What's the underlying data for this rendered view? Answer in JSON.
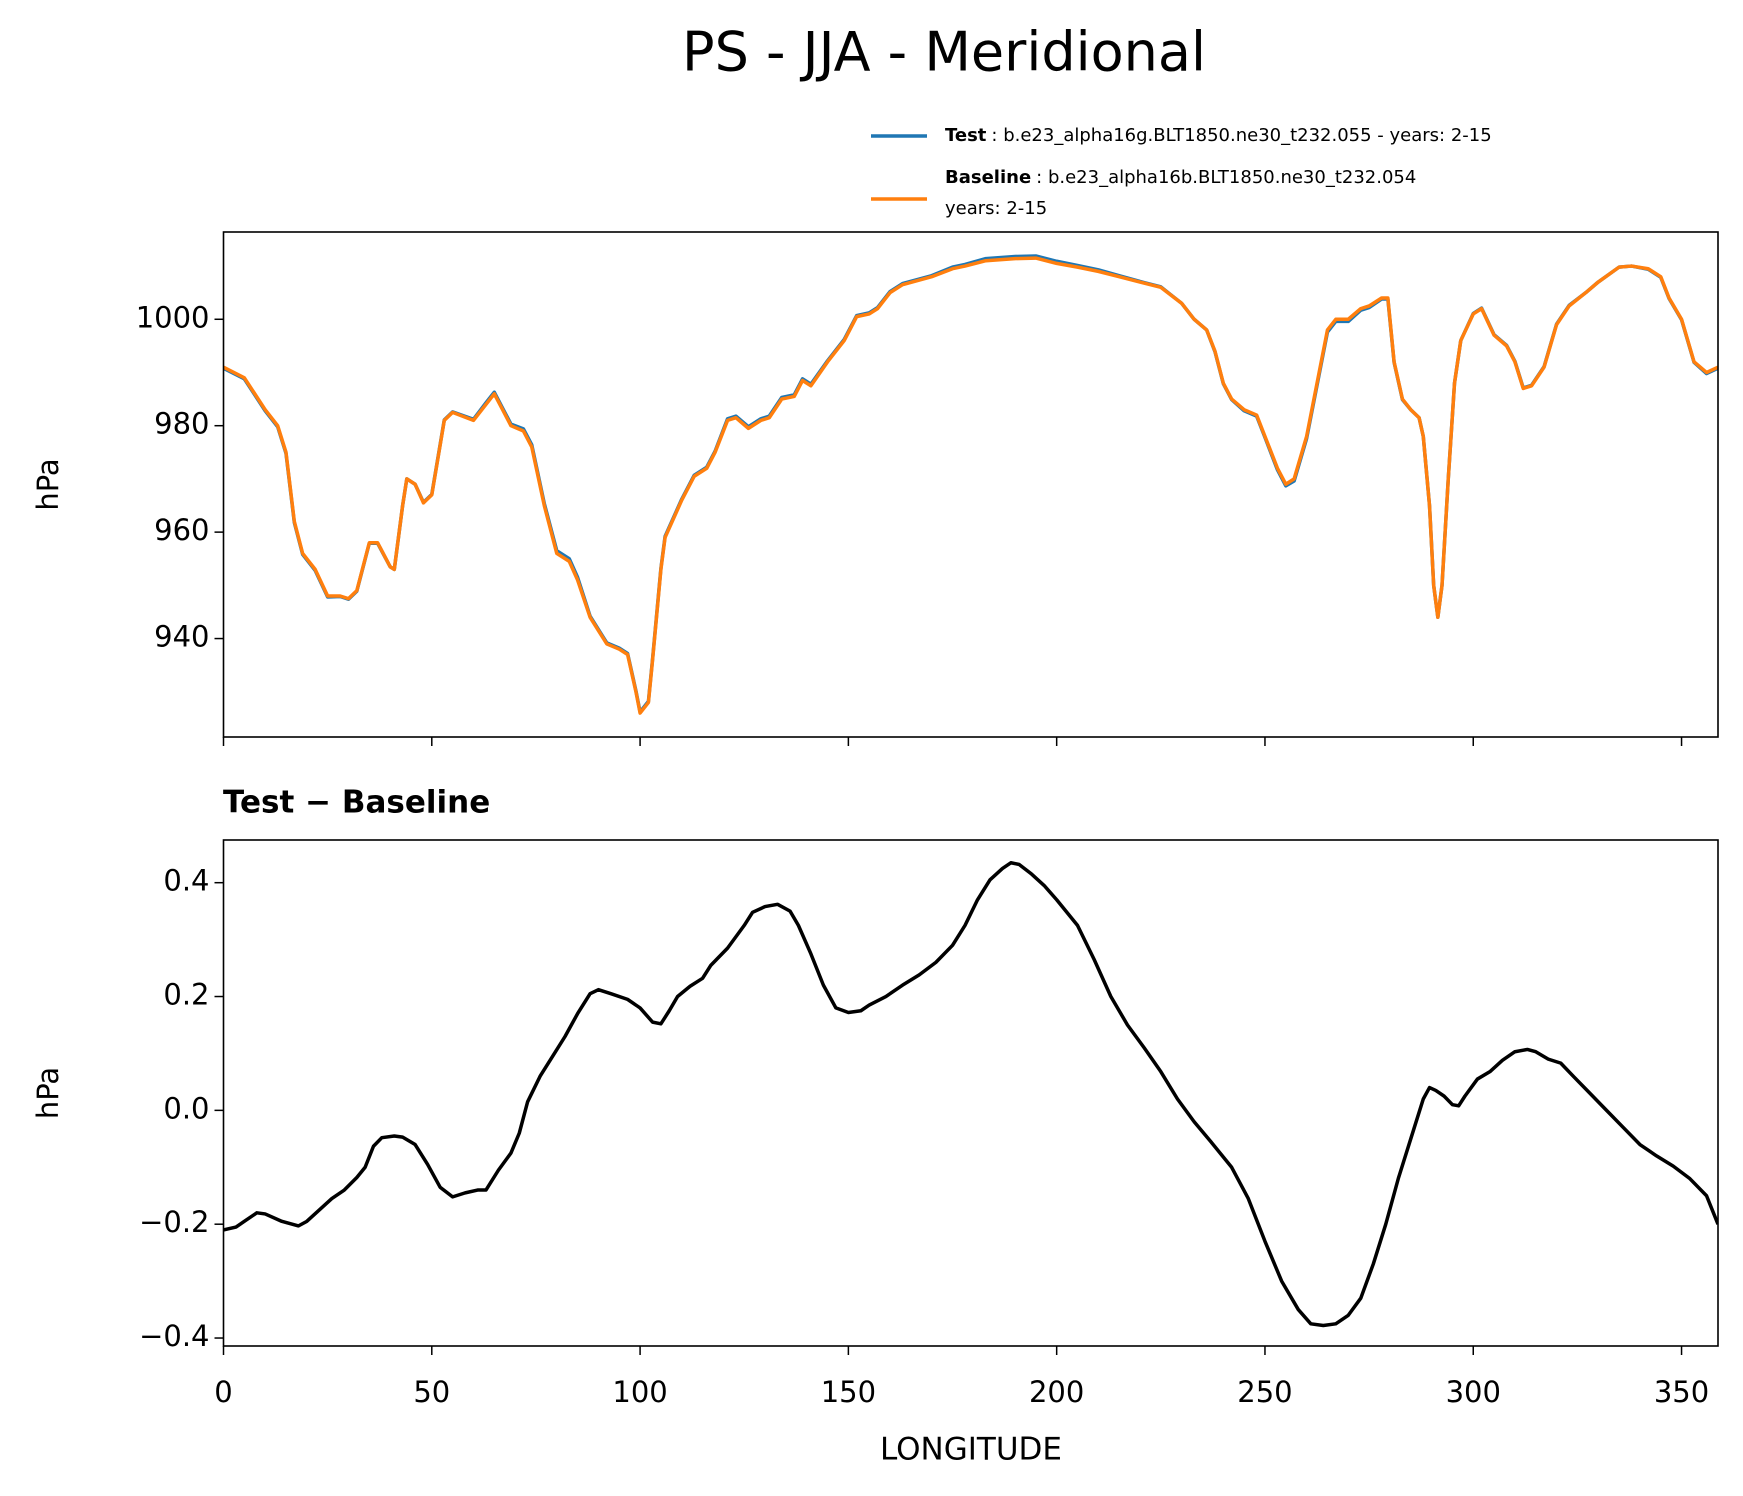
{
  "chart_data": [
    {
      "type": "line",
      "title": "PS - JJA - Meridional",
      "ylabel": "hPa",
      "x": [
        0,
        5,
        10,
        13,
        15,
        17,
        19,
        22,
        25,
        28,
        30,
        32,
        35,
        37,
        40,
        41,
        43,
        44,
        46,
        48,
        50,
        53,
        55,
        60,
        63,
        65,
        67,
        69,
        72,
        74,
        77,
        80,
        83,
        85,
        88,
        92,
        95,
        97,
        99,
        100,
        102,
        103,
        105,
        106,
        110,
        113,
        116,
        118,
        121,
        123,
        126,
        129,
        131,
        134,
        137,
        139,
        141,
        145,
        149,
        152,
        155,
        157,
        160,
        163,
        170,
        175,
        178,
        183,
        190,
        195,
        200,
        205,
        210,
        215,
        220,
        225,
        230,
        233,
        236,
        238,
        240,
        242,
        245,
        248,
        250,
        253,
        255,
        257,
        260,
        263,
        265,
        267,
        270,
        273,
        275,
        278,
        279.5,
        281,
        283,
        285,
        287,
        288,
        289.5,
        290.5,
        291.5,
        292.5,
        294,
        295.5,
        297,
        300,
        302,
        305,
        308,
        310,
        312,
        314,
        317,
        320,
        323,
        327,
        330,
        335,
        338,
        342,
        345,
        347,
        350,
        353,
        356,
        358.75
      ],
      "series": [
        {
          "name": "Test",
          "case_lines": [
            ": b.e23_alpha16g.BLT1850.ne30_t232.055 - years: 2-15"
          ],
          "color": "#1f77b4",
          "values": [
            990.8,
            988.8,
            982.8,
            979.8,
            974.8,
            961.8,
            955.8,
            952.8,
            947.8,
            947.9,
            947.4,
            948.9,
            957.9,
            957.9,
            953.5,
            953,
            965,
            970,
            969,
            965.6,
            967.1,
            981.1,
            982.6,
            981.2,
            984.3,
            986.3,
            983.3,
            980.3,
            979.4,
            976.4,
            965.4,
            956.5,
            955,
            951.5,
            944.2,
            939.2,
            938.2,
            937.2,
            930.2,
            926.2,
            928.2,
            936.2,
            953.2,
            959.2,
            966.2,
            970.7,
            972.2,
            975.2,
            981.3,
            981.8,
            979.8,
            981.3,
            981.8,
            985.3,
            985.8,
            988.8,
            987.8,
            992.2,
            996.2,
            1000.7,
            1001.2,
            1002.2,
            1005.2,
            1006.7,
            1008.2,
            1009.8,
            1010.3,
            1011.4,
            1011.8,
            1011.9,
            1010.9,
            1010.1,
            1009.3,
            1008.2,
            1007.1,
            1006.1,
            1003,
            1000,
            998,
            993.9,
            987.9,
            984.9,
            982.8,
            981.8,
            977.8,
            971.7,
            968.7,
            969.6,
            977.6,
            989.6,
            997.6,
            999.6,
            999.6,
            1001.7,
            1002.2,
            1003.8,
            1003.8,
            991.9,
            984.9,
            983,
            981.5,
            978,
            965,
            950,
            944,
            950,
            970,
            988,
            996,
            1001.1,
            1002.1,
            997.1,
            995.1,
            992.1,
            987.1,
            987.6,
            991.1,
            999.1,
            1002.6,
            1005,
            1007,
            1009.8,
            1010,
            1009.4,
            1007.9,
            1003.9,
            999.9,
            991.9,
            989.8,
            990.8
          ]
        },
        {
          "name": "Baseline",
          "case_lines": [
            ": b.e23_alpha16b.BLT1850.ne30_t232.054",
            "years: 2-15"
          ],
          "color": "#ff7f0e",
          "values": [
            991,
            989,
            983,
            980,
            975,
            962,
            956,
            953,
            948,
            948,
            947.5,
            949,
            958,
            958,
            953.5,
            953,
            965,
            970,
            969,
            965.5,
            967,
            981,
            982.5,
            981,
            984,
            986,
            983,
            980,
            979,
            976,
            965,
            956,
            954.5,
            951,
            944,
            939,
            938,
            937,
            930,
            926,
            928,
            936,
            953,
            959,
            966,
            970.5,
            972,
            975,
            981,
            981.5,
            979.5,
            981,
            981.5,
            985,
            985.5,
            988.5,
            987.5,
            992,
            996,
            1000.5,
            1001,
            1002,
            1005,
            1006.5,
            1008,
            1009.5,
            1010,
            1011,
            1011.4,
            1011.5,
            1010.5,
            1009.8,
            1009,
            1008,
            1007,
            1006,
            1003,
            1000,
            998,
            994,
            988,
            985,
            983,
            982,
            978,
            972,
            969,
            970,
            978,
            990,
            998,
            1000,
            1000,
            1002,
            1002.5,
            1004,
            1004,
            992,
            985,
            983,
            981.5,
            978,
            965,
            950,
            944,
            950,
            970,
            988,
            996,
            1001,
            1002,
            997,
            995,
            992,
            987,
            987.5,
            991,
            999,
            1002.5,
            1005,
            1007,
            1009.8,
            1010,
            1009.5,
            1008,
            1004,
            1000,
            992,
            990,
            991
          ]
        }
      ],
      "xlim": [
        0,
        358.75
      ],
      "ylim": [
        921.5,
        1016.4
      ],
      "xticks": [
        0,
        50,
        100,
        150,
        200,
        250,
        300,
        350
      ],
      "yticks": [
        940,
        960,
        980,
        1000
      ]
    },
    {
      "type": "line",
      "title": "Test − Baseline",
      "ylabel": "hPa",
      "xlabel": "LONGITUDE",
      "color": "#000000",
      "x": [
        0,
        3,
        5,
        8,
        10,
        14,
        18,
        20,
        23,
        26,
        29,
        32,
        34,
        36,
        38,
        41,
        43,
        46,
        49,
        52,
        55,
        58,
        61,
        63,
        66,
        69,
        71,
        73,
        76,
        79,
        82,
        85,
        88,
        90,
        93,
        97,
        100,
        103,
        105,
        107,
        109,
        112,
        115,
        117,
        121,
        125,
        127,
        130,
        133,
        136,
        138,
        141,
        144,
        147,
        150,
        153,
        155,
        159,
        163,
        167,
        171,
        175,
        178,
        181,
        184,
        187,
        189,
        191,
        194,
        197,
        200,
        205,
        209,
        213,
        217,
        221,
        225,
        229,
        233,
        237,
        242,
        246,
        250,
        254,
        258,
        261,
        264,
        267,
        270,
        273,
        276,
        279,
        282,
        285,
        288,
        289.5,
        291,
        293,
        295,
        296.5,
        298,
        301,
        304,
        307,
        310,
        313,
        315,
        318,
        321,
        324,
        328,
        332,
        336,
        340,
        344,
        348,
        352,
        356,
        358.75
      ],
      "values": [
        -0.21,
        -0.205,
        -0.195,
        -0.18,
        -0.182,
        -0.195,
        -0.203,
        -0.195,
        -0.175,
        -0.155,
        -0.14,
        -0.118,
        -0.1,
        -0.063,
        -0.048,
        -0.045,
        -0.047,
        -0.06,
        -0.095,
        -0.135,
        -0.152,
        -0.145,
        -0.14,
        -0.14,
        -0.105,
        -0.075,
        -0.04,
        0.015,
        0.06,
        0.095,
        0.13,
        0.17,
        0.205,
        0.212,
        0.205,
        0.195,
        0.18,
        0.155,
        0.152,
        0.175,
        0.2,
        0.218,
        0.232,
        0.255,
        0.285,
        0.325,
        0.348,
        0.358,
        0.362,
        0.35,
        0.325,
        0.275,
        0.22,
        0.18,
        0.172,
        0.175,
        0.185,
        0.2,
        0.22,
        0.238,
        0.26,
        0.29,
        0.325,
        0.37,
        0.405,
        0.425,
        0.435,
        0.432,
        0.415,
        0.395,
        0.37,
        0.325,
        0.265,
        0.2,
        0.15,
        0.11,
        0.068,
        0.02,
        -0.02,
        -0.055,
        -0.1,
        -0.155,
        -0.23,
        -0.3,
        -0.35,
        -0.375,
        -0.378,
        -0.375,
        -0.36,
        -0.33,
        -0.27,
        -0.2,
        -0.12,
        -0.05,
        0.02,
        0.04,
        0.035,
        0.025,
        0.01,
        0.008,
        0.025,
        0.055,
        0.068,
        0.088,
        0.103,
        0.107,
        0.103,
        0.09,
        0.083,
        0.06,
        0.03,
        0,
        -0.03,
        -0.06,
        -0.08,
        -0.098,
        -0.12,
        -0.15,
        -0.2
      ],
      "xlim": [
        0,
        358.75
      ],
      "ylim": [
        -0.414,
        0.475
      ],
      "xticks": [
        0,
        50,
        100,
        150,
        200,
        250,
        300,
        350
      ],
      "yticks": [
        {
          "value": -0.4,
          "label": "−0.4"
        },
        {
          "value": -0.2,
          "label": "−0.2"
        },
        {
          "value": 0,
          "label": "0.0"
        },
        0.2,
        0.4
      ]
    }
  ]
}
